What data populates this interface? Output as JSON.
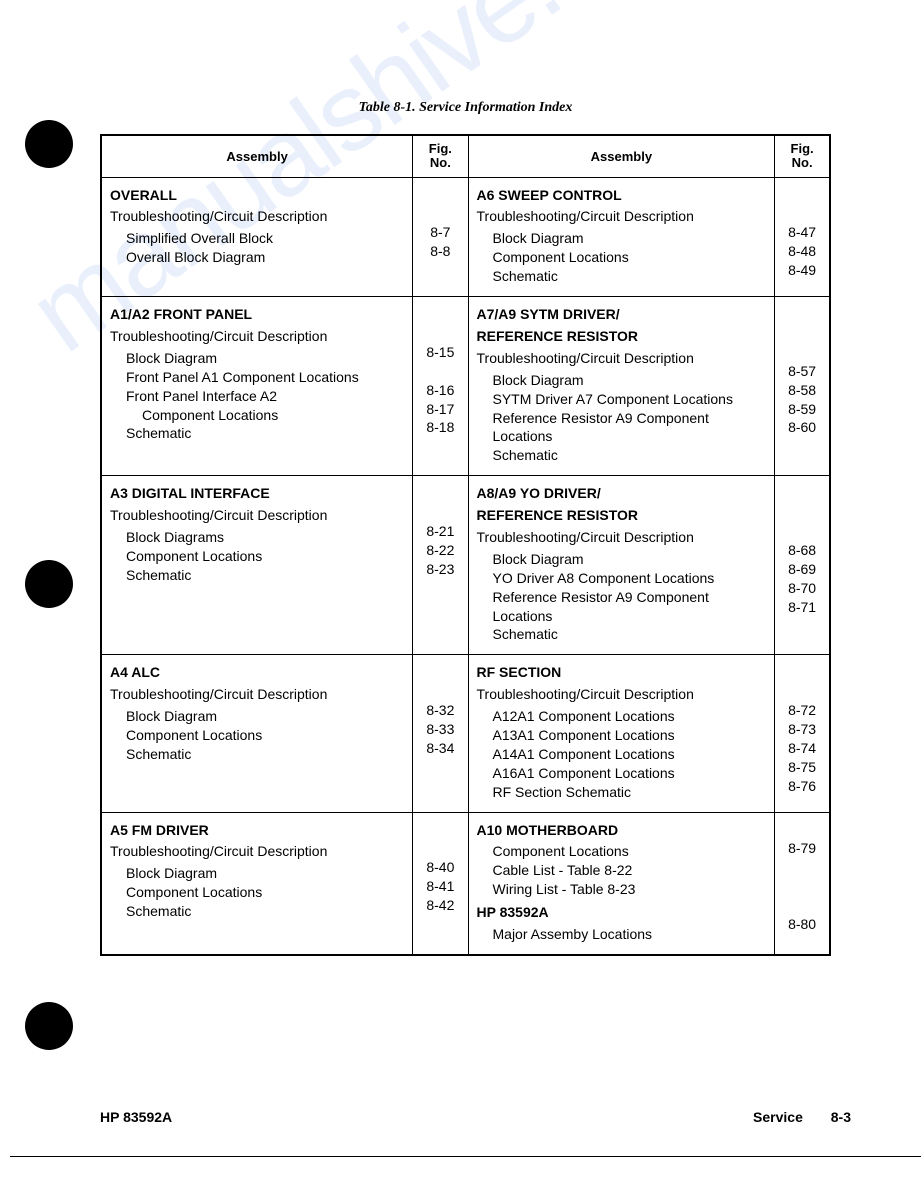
{
  "title": "Table 8-1.   Service Information Index",
  "headers": {
    "assembly": "Assembly",
    "fig": "Fig.\nNo."
  },
  "watermark": "manualshive.com",
  "footer": {
    "left": "HP 83592A",
    "service": "Service",
    "page": "8-3"
  },
  "sections": [
    {
      "left": {
        "title": "OVERALL",
        "subtitle": "Troubleshooting/Circuit Description",
        "items": [
          {
            "label": "Simplified Overall Block",
            "fig": "8-7",
            "indent": 1
          },
          {
            "label": "Overall Block Diagram",
            "fig": "8-8",
            "indent": 1
          }
        ]
      },
      "right": {
        "title": "A6 SWEEP CONTROL",
        "subtitle": "Troubleshooting/Circuit Description",
        "items": [
          {
            "label": "Block Diagram",
            "fig": "8-47",
            "indent": 1
          },
          {
            "label": "Component Locations",
            "fig": "8-48",
            "indent": 1
          },
          {
            "label": "Schematic",
            "fig": "8-49",
            "indent": 1
          }
        ]
      }
    },
    {
      "left": {
        "title": "A1/A2 FRONT PANEL",
        "subtitle": "Troubleshooting/Circuit Description",
        "items": [
          {
            "label": "Block Diagram",
            "fig": "8-15",
            "indent": 1
          },
          {
            "label": "Front Panel A1 Component Locations",
            "fig": "",
            "indent": 1
          },
          {
            "label": "Front Panel Interface A2",
            "fig": "8-16",
            "indent": 1
          },
          {
            "label": "Component Locations",
            "fig": "8-17",
            "indent": 2
          },
          {
            "label": "Schematic",
            "fig": "8-18",
            "indent": 1
          }
        ]
      },
      "right": {
        "title": "A7/A9 SYTM DRIVER/\n  REFERENCE RESISTOR",
        "subtitle": "Troubleshooting/Circuit Description",
        "items": [
          {
            "label": "Block Diagram",
            "fig": "8-57",
            "indent": 1
          },
          {
            "label": "SYTM Driver A7 Component Locations",
            "fig": "8-58",
            "indent": 1
          },
          {
            "label": "Reference Resistor A9 Component Locations",
            "fig": "8-59",
            "indent": 1
          },
          {
            "label": "Schematic",
            "fig": "8-60",
            "indent": 1
          }
        ]
      }
    },
    {
      "left": {
        "title": "A3 DIGITAL INTERFACE",
        "subtitle": "Troubleshooting/Circuit Description",
        "items": [
          {
            "label": "Block Diagrams",
            "fig": "8-21",
            "indent": 1
          },
          {
            "label": "Component Locations",
            "fig": "8-22",
            "indent": 1
          },
          {
            "label": "Schematic",
            "fig": "8-23",
            "indent": 1
          }
        ]
      },
      "right": {
        "title": "A8/A9 YO DRIVER/\n  REFERENCE RESISTOR",
        "subtitle": "Troubleshooting/Circuit Description",
        "items": [
          {
            "label": "Block Diagram",
            "fig": "8-68",
            "indent": 1
          },
          {
            "label": "YO Driver A8 Component Locations",
            "fig": "8-69",
            "indent": 1
          },
          {
            "label": "Reference Resistor A9 Component Locations",
            "fig": "8-70",
            "indent": 1
          },
          {
            "label": "Schematic",
            "fig": "8-71",
            "indent": 1
          }
        ]
      }
    },
    {
      "left": {
        "title": "A4 ALC",
        "subtitle": "Troubleshooting/Circuit Description",
        "items": [
          {
            "label": "Block Diagram",
            "fig": "8-32",
            "indent": 1
          },
          {
            "label": "Component Locations",
            "fig": "8-33",
            "indent": 1
          },
          {
            "label": "Schematic",
            "fig": "8-34",
            "indent": 1
          }
        ]
      },
      "right": {
        "title": "RF SECTION",
        "subtitle": "Troubleshooting/Circuit Description",
        "items": [
          {
            "label": "A12A1 Component Locations",
            "fig": "8-72",
            "indent": 1
          },
          {
            "label": "A13A1 Component Locations",
            "fig": "8-73",
            "indent": 1
          },
          {
            "label": "A14A1 Component Locations",
            "fig": "8-74",
            "indent": 1
          },
          {
            "label": "A16A1 Component Locations",
            "fig": "8-75",
            "indent": 1
          },
          {
            "label": "RF Section Schematic",
            "fig": "8-76",
            "indent": 1
          }
        ]
      }
    },
    {
      "left": {
        "title": "A5 FM DRIVER",
        "subtitle": "Troubleshooting/Circuit Description",
        "items": [
          {
            "label": "Block Diagram",
            "fig": "8-40",
            "indent": 1
          },
          {
            "label": "Component Locations",
            "fig": "8-41",
            "indent": 1
          },
          {
            "label": "Schematic",
            "fig": "8-42",
            "indent": 1
          }
        ]
      },
      "right": {
        "title": "A10 MOTHERBOARD",
        "subtitle": "",
        "items": [
          {
            "label": "Component Locations",
            "fig": "8-79",
            "indent": 1
          },
          {
            "label": "Cable List - Table 8-22",
            "fig": "",
            "indent": 1
          },
          {
            "label": "Wiring List - Table 8-23",
            "fig": "",
            "indent": 1
          }
        ],
        "extra_title": "HP 83592A",
        "extra_items": [
          {
            "label": "Major Assemby Locations",
            "fig": "8-80",
            "indent": 1
          }
        ]
      }
    }
  ]
}
